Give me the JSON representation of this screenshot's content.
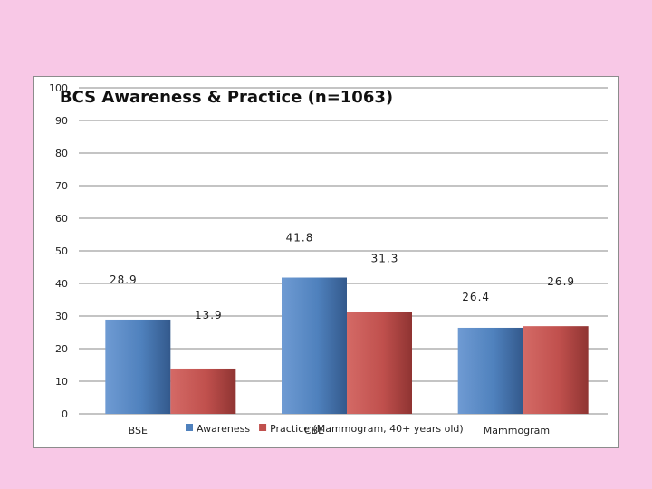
{
  "chart_data": {
    "type": "bar",
    "title": "BCS Awareness & Practice (n=1063)",
    "categories": [
      "BSE",
      "CBE",
      "Mammogram"
    ],
    "series": [
      {
        "name": "Awareness",
        "values": [
          28.9,
          41.8,
          26.4
        ],
        "color": "#4f81bd"
      },
      {
        "name": "Practice (Mammogram, 40+ years old)",
        "values": [
          13.9,
          31.3,
          26.9
        ],
        "color": "#c0504d"
      }
    ],
    "ylim": [
      0,
      100
    ],
    "yticks": [
      0,
      10,
      20,
      30,
      40,
      50,
      60,
      70,
      80,
      90,
      100
    ],
    "grid": true,
    "legend_position": "bottom",
    "xlabel": "",
    "ylabel": ""
  },
  "page": {
    "background": "#f8c8e6"
  }
}
